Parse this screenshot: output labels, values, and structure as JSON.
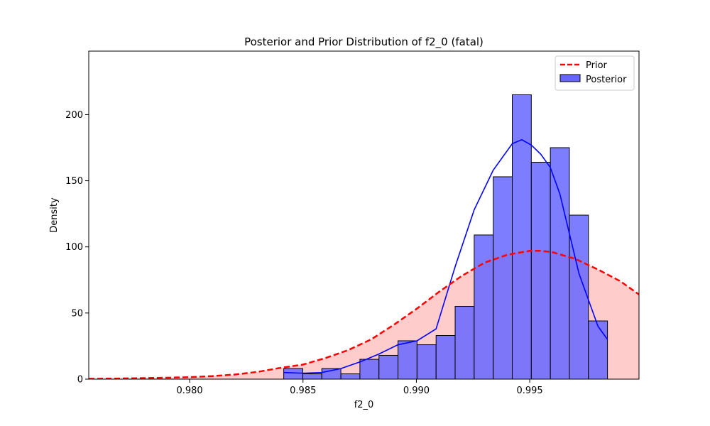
{
  "chart_data": {
    "type": "histogram",
    "title": "Posterior and Prior Distribution of f2_0 (fatal)",
    "xlabel": "f2_0",
    "ylabel": "Density",
    "xlim": [
      0.97555,
      0.99982
    ],
    "ylim": [
      0,
      248
    ],
    "x_ticks": [
      0.98,
      0.985,
      0.99,
      0.995
    ],
    "x_tick_labels": [
      "0.980",
      "0.985",
      "0.990",
      "0.995"
    ],
    "y_ticks": [
      0,
      50,
      100,
      150,
      200
    ],
    "y_tick_labels": [
      "0",
      "50",
      "100",
      "150",
      "200"
    ],
    "legend": {
      "position": "top-right",
      "entries": [
        "Prior",
        "Posterior"
      ]
    },
    "grid": false,
    "colors": {
      "prior_line": "#ff0000",
      "prior_fill": "#ffcccc",
      "posterior_bar": "#6666ff",
      "posterior_edge": "#000000",
      "kde_line": "#0000ff"
    },
    "posterior": {
      "bin_edges": [
        0.98415,
        0.98499,
        0.98583,
        0.98667,
        0.98751,
        0.98835,
        0.98919,
        0.99003,
        0.99087,
        0.99171,
        0.99255,
        0.99339,
        0.99423,
        0.99507,
        0.99591,
        0.99675,
        0.99759,
        0.99843
      ],
      "densities": [
        8,
        4,
        8,
        4,
        15,
        18,
        29,
        26,
        33,
        55,
        109,
        153,
        215,
        164,
        175,
        124,
        44
      ]
    },
    "posterior_kde": {
      "x": [
        0.98415,
        0.98499,
        0.98583,
        0.98667,
        0.98751,
        0.98835,
        0.98919,
        0.99003,
        0.99087,
        0.99171,
        0.99255,
        0.99339,
        0.99423,
        0.99465,
        0.99507,
        0.99549,
        0.99591,
        0.99633,
        0.99675,
        0.99717,
        0.99759,
        0.99801,
        0.99843
      ],
      "y": [
        5,
        4.5,
        5,
        8,
        13,
        19,
        26,
        29,
        38,
        85,
        128,
        158,
        178,
        181,
        177,
        170,
        160,
        140,
        110,
        80,
        60,
        40,
        30
      ]
    },
    "prior": {
      "x": [
        0.97555,
        0.976,
        0.977,
        0.978,
        0.979,
        0.98,
        0.981,
        0.982,
        0.983,
        0.984,
        0.985,
        0.986,
        0.987,
        0.988,
        0.989,
        0.99,
        0.991,
        0.992,
        0.993,
        0.994,
        0.995,
        0.9955,
        0.996,
        0.997,
        0.998,
        0.999,
        0.99982
      ],
      "y": [
        0.3,
        0.3,
        0.5,
        0.8,
        1.1,
        1.5,
        2.3,
        3.5,
        5.5,
        8.5,
        11,
        16,
        22,
        30,
        41,
        53,
        66,
        78,
        88,
        94,
        97,
        97,
        96,
        91,
        83,
        74,
        64
      ]
    }
  }
}
